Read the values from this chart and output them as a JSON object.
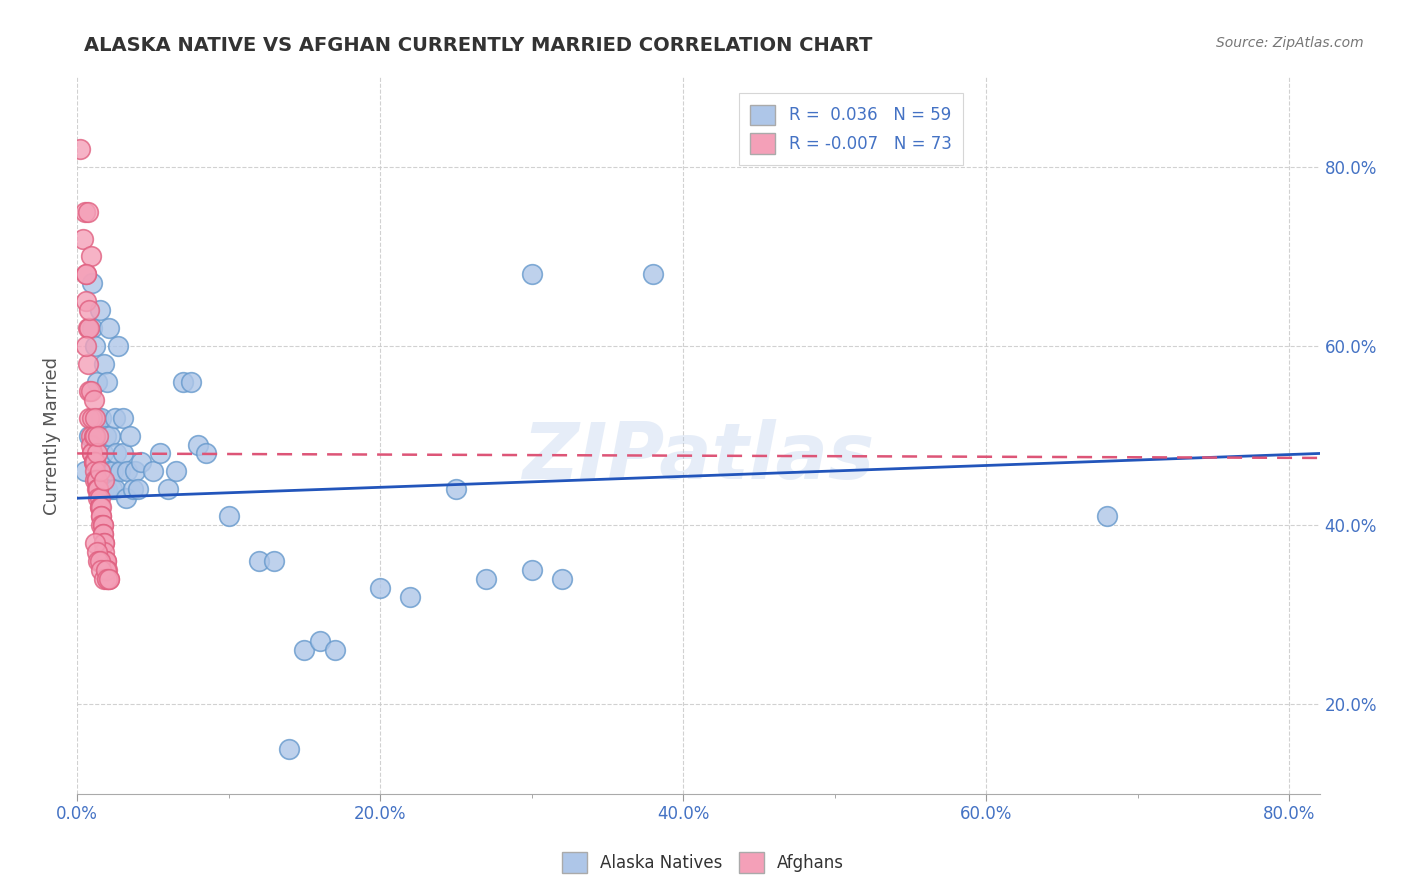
{
  "title": "ALASKA NATIVE VS AFGHAN CURRENTLY MARRIED CORRELATION CHART",
  "source": "Source: ZipAtlas.com",
  "ylabel": "Currently Married",
  "watermark": "ZIPatlas",
  "x_ticks_major": [
    0.0,
    0.2,
    0.4,
    0.6,
    0.8
  ],
  "x_ticks_major_labels": [
    "0.0%",
    "20.0%",
    "40.0%",
    "60.0%",
    "80.0%"
  ],
  "x_ticks_minor": [
    0.1,
    0.3,
    0.5,
    0.7
  ],
  "y_ticks_major": [
    0.2,
    0.4,
    0.6,
    0.8
  ],
  "y_ticks_major_labels": [
    "20.0%",
    "40.0%",
    "60.0%",
    "80.0%"
  ],
  "xlim": [
    0.0,
    0.82
  ],
  "ylim": [
    0.1,
    0.9
  ],
  "blue_scatter": [
    [
      0.005,
      0.46
    ],
    [
      0.008,
      0.5
    ],
    [
      0.01,
      0.62
    ],
    [
      0.01,
      0.67
    ],
    [
      0.012,
      0.6
    ],
    [
      0.013,
      0.56
    ],
    [
      0.014,
      0.52
    ],
    [
      0.015,
      0.64
    ],
    [
      0.015,
      0.47
    ],
    [
      0.016,
      0.44
    ],
    [
      0.016,
      0.52
    ],
    [
      0.017,
      0.48
    ],
    [
      0.018,
      0.44
    ],
    [
      0.018,
      0.58
    ],
    [
      0.019,
      0.5
    ],
    [
      0.02,
      0.56
    ],
    [
      0.02,
      0.44
    ],
    [
      0.021,
      0.62
    ],
    [
      0.022,
      0.5
    ],
    [
      0.022,
      0.46
    ],
    [
      0.023,
      0.44
    ],
    [
      0.024,
      0.46
    ],
    [
      0.025,
      0.44
    ],
    [
      0.025,
      0.52
    ],
    [
      0.026,
      0.48
    ],
    [
      0.027,
      0.6
    ],
    [
      0.028,
      0.46
    ],
    [
      0.03,
      0.52
    ],
    [
      0.03,
      0.48
    ],
    [
      0.032,
      0.43
    ],
    [
      0.033,
      0.46
    ],
    [
      0.035,
      0.5
    ],
    [
      0.037,
      0.44
    ],
    [
      0.038,
      0.46
    ],
    [
      0.04,
      0.44
    ],
    [
      0.042,
      0.47
    ],
    [
      0.05,
      0.46
    ],
    [
      0.055,
      0.48
    ],
    [
      0.06,
      0.44
    ],
    [
      0.065,
      0.46
    ],
    [
      0.07,
      0.56
    ],
    [
      0.075,
      0.56
    ],
    [
      0.08,
      0.49
    ],
    [
      0.085,
      0.48
    ],
    [
      0.1,
      0.41
    ],
    [
      0.12,
      0.36
    ],
    [
      0.13,
      0.36
    ],
    [
      0.14,
      0.15
    ],
    [
      0.15,
      0.26
    ],
    [
      0.16,
      0.27
    ],
    [
      0.17,
      0.26
    ],
    [
      0.2,
      0.33
    ],
    [
      0.22,
      0.32
    ],
    [
      0.25,
      0.44
    ],
    [
      0.27,
      0.34
    ],
    [
      0.3,
      0.35
    ],
    [
      0.32,
      0.34
    ],
    [
      0.68,
      0.41
    ],
    [
      0.3,
      0.68
    ],
    [
      0.38,
      0.68
    ]
  ],
  "pink_scatter": [
    [
      0.002,
      0.82
    ],
    [
      0.004,
      0.72
    ],
    [
      0.005,
      0.75
    ],
    [
      0.006,
      0.68
    ],
    [
      0.006,
      0.65
    ],
    [
      0.007,
      0.62
    ],
    [
      0.007,
      0.58
    ],
    [
      0.008,
      0.55
    ],
    [
      0.008,
      0.52
    ],
    [
      0.009,
      0.5
    ],
    [
      0.009,
      0.49
    ],
    [
      0.01,
      0.48
    ],
    [
      0.01,
      0.48
    ],
    [
      0.011,
      0.47
    ],
    [
      0.011,
      0.47
    ],
    [
      0.012,
      0.47
    ],
    [
      0.012,
      0.46
    ],
    [
      0.012,
      0.45
    ],
    [
      0.013,
      0.45
    ],
    [
      0.013,
      0.45
    ],
    [
      0.013,
      0.44
    ],
    [
      0.014,
      0.44
    ],
    [
      0.014,
      0.44
    ],
    [
      0.014,
      0.43
    ],
    [
      0.015,
      0.43
    ],
    [
      0.015,
      0.42
    ],
    [
      0.015,
      0.42
    ],
    [
      0.016,
      0.42
    ],
    [
      0.016,
      0.41
    ],
    [
      0.016,
      0.41
    ],
    [
      0.016,
      0.4
    ],
    [
      0.017,
      0.4
    ],
    [
      0.017,
      0.4
    ],
    [
      0.017,
      0.39
    ],
    [
      0.017,
      0.39
    ],
    [
      0.018,
      0.38
    ],
    [
      0.018,
      0.38
    ],
    [
      0.018,
      0.37
    ],
    [
      0.018,
      0.36
    ],
    [
      0.019,
      0.36
    ],
    [
      0.019,
      0.36
    ],
    [
      0.019,
      0.35
    ],
    [
      0.019,
      0.35
    ],
    [
      0.02,
      0.35
    ],
    [
      0.02,
      0.34
    ],
    [
      0.021,
      0.34
    ],
    [
      0.008,
      0.62
    ],
    [
      0.009,
      0.7
    ],
    [
      0.007,
      0.75
    ],
    [
      0.006,
      0.68
    ],
    [
      0.008,
      0.64
    ],
    [
      0.006,
      0.6
    ],
    [
      0.01,
      0.52
    ],
    [
      0.011,
      0.5
    ],
    [
      0.012,
      0.5
    ],
    [
      0.013,
      0.48
    ],
    [
      0.015,
      0.46
    ],
    [
      0.018,
      0.45
    ],
    [
      0.012,
      0.38
    ],
    [
      0.013,
      0.37
    ],
    [
      0.014,
      0.36
    ],
    [
      0.015,
      0.36
    ],
    [
      0.016,
      0.35
    ],
    [
      0.018,
      0.34
    ],
    [
      0.009,
      0.55
    ],
    [
      0.011,
      0.54
    ],
    [
      0.012,
      0.52
    ],
    [
      0.014,
      0.5
    ],
    [
      0.019,
      0.35
    ],
    [
      0.02,
      0.34
    ],
    [
      0.021,
      0.34
    ]
  ],
  "blue_line_x": [
    0.0,
    0.82
  ],
  "blue_line_y": [
    0.43,
    0.48
  ],
  "pink_line_x": [
    0.0,
    0.82
  ],
  "pink_line_y": [
    0.48,
    0.475
  ],
  "blue_line_color": "#2255bb",
  "pink_line_color": "#dd5577",
  "blue_dot_color": "#aec6e8",
  "pink_dot_color": "#f4a0b8",
  "dot_edge_blue": "#6699cc",
  "dot_edge_pink": "#e06080",
  "background_color": "#ffffff",
  "grid_color": "#cccccc",
  "title_color": "#333333",
  "axis_label_color": "#555555",
  "tick_color": "#4472c4",
  "source_color": "#777777"
}
